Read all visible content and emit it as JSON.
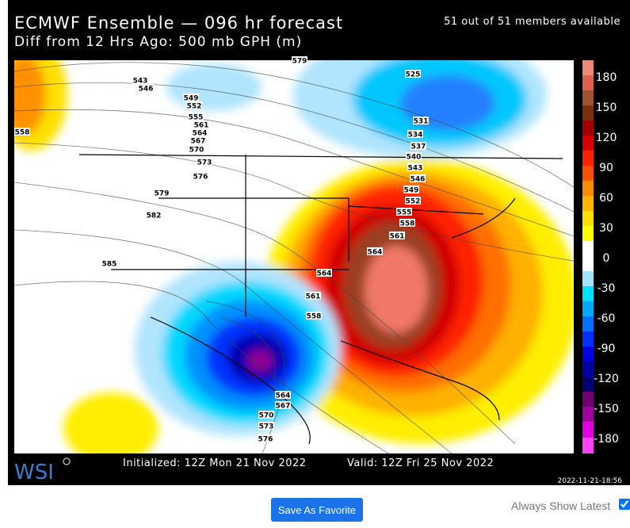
{
  "header": {
    "title": "ECMWF Ensemble — 096 hr forecast",
    "subtitle": "Diff from 12 Hrs Ago: 500 mb GPH (m)",
    "members": "51 out of 51 members available"
  },
  "colorbar": {
    "labels": [
      180,
      150,
      120,
      90,
      60,
      30,
      0,
      -30,
      -60,
      -90,
      -120,
      -150,
      -180
    ]
  },
  "contour_labels": [
    "543",
    "546",
    "549",
    "552",
    "555",
    "561",
    "564",
    "567",
    "570",
    "573",
    "576",
    "579",
    "582",
    "585",
    "558",
    "525",
    "531",
    "534",
    "537",
    "540",
    "543",
    "546",
    "549",
    "552",
    "555",
    "558",
    "561",
    "564",
    "564",
    "561",
    "558",
    "564",
    "567",
    "570",
    "573",
    "576",
    "579"
  ],
  "footer": {
    "logo": "WSI",
    "initialized": "Initialized: 12Z Mon 21 Nov 2022",
    "valid": "Valid: 12Z Fri 25 Nov 2022",
    "timestamp": "2022-11-21-18:56"
  },
  "controls": {
    "button": "Save As Favorite",
    "checkbox_label": "Always Show Latest"
  }
}
